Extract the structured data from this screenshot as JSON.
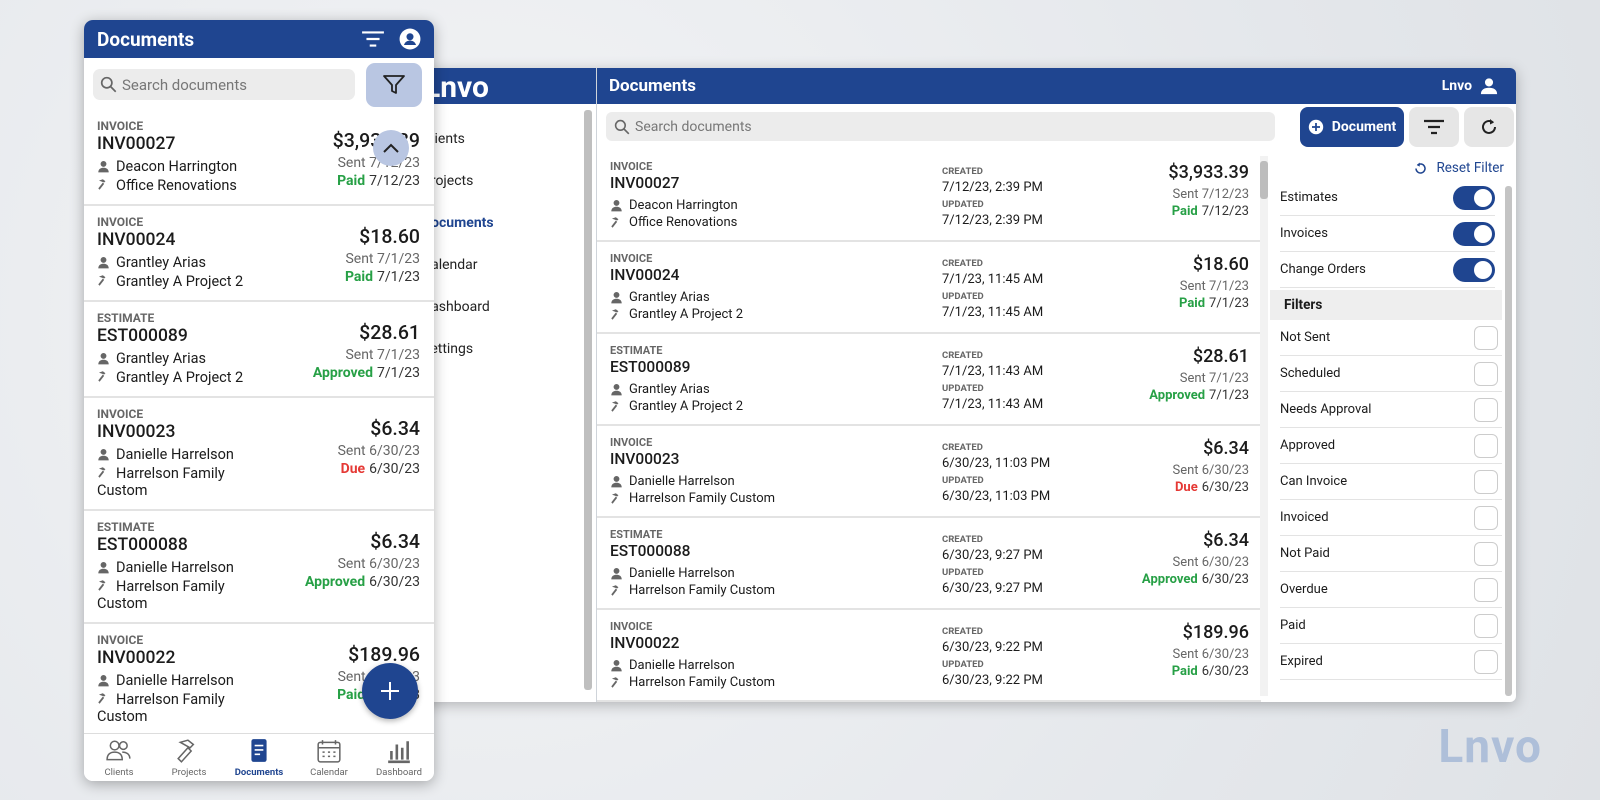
{
  "mobile": {
    "title": "Documents",
    "search_placeholder": "Search documents",
    "nav": [
      "Clients",
      "Projects",
      "Documents",
      "Calendar",
      "Dashboard"
    ]
  },
  "desktop": {
    "logo": "Lnvo",
    "sidebar": [
      "Clients",
      "Projects",
      "Documents",
      "Calendar",
      "Dashboard",
      "Settings"
    ],
    "title": "Documents",
    "user": "Lnvo",
    "search_placeholder": "Search documents",
    "new_button": "Document",
    "reset_filter": "Reset Filter",
    "toggles": [
      "Estimates",
      "Invoices",
      "Change Orders"
    ],
    "filters_heading": "Filters",
    "filters": [
      "Not Sent",
      "Scheduled",
      "Needs Approval",
      "Approved",
      "Can Invoice",
      "Invoiced",
      "Not Paid",
      "Overdue",
      "Paid",
      "Expired"
    ],
    "created_label": "CREATED",
    "updated_label": "UPDATED"
  },
  "documents": [
    {
      "type": "INVOICE",
      "number": "INV00027",
      "client": "Deacon Harrington",
      "project": "Office Renovations",
      "amount": "$3,933.39",
      "sent": "Sent 7/12/23",
      "status": "Paid",
      "status_date": "7/12/23",
      "status_color": "#27a046",
      "created": "7/12/23, 2:39 PM",
      "updated": "7/12/23, 2:39 PM"
    },
    {
      "type": "INVOICE",
      "number": "INV00024",
      "client": "Grantley Arias",
      "project": "Grantley A Project 2",
      "amount": "$18.60",
      "sent": "Sent 7/1/23",
      "status": "Paid",
      "status_date": "7/1/23",
      "status_color": "#27a046",
      "created": "7/1/23, 11:45 AM",
      "updated": "7/1/23, 11:45 AM"
    },
    {
      "type": "ESTIMATE",
      "number": "EST000089",
      "client": "Grantley Arias",
      "project": "Grantley A Project 2",
      "amount": "$28.61",
      "sent": "Sent 7/1/23",
      "status": "Approved",
      "status_date": "7/1/23",
      "status_color": "#27a046",
      "created": "7/1/23, 11:43 AM",
      "updated": "7/1/23, 11:43 AM"
    },
    {
      "type": "INVOICE",
      "number": "INV00023",
      "client": "Danielle Harrelson",
      "project": "Harrelson Family Custom",
      "amount": "$6.34",
      "sent": "Sent 6/30/23",
      "status": "Due",
      "status_date": "6/30/23",
      "status_color": "#e53935",
      "created": "6/30/23, 11:03 PM",
      "updated": "6/30/23, 11:03 PM"
    },
    {
      "type": "ESTIMATE",
      "number": "EST000088",
      "client": "Danielle Harrelson",
      "project": "Harrelson Family Custom",
      "amount": "$6.34",
      "sent": "Sent 6/30/23",
      "status": "Approved",
      "status_date": "6/30/23",
      "status_color": "#27a046",
      "created": "6/30/23, 9:27 PM",
      "updated": "6/30/23, 9:27 PM"
    },
    {
      "type": "INVOICE",
      "number": "INV00022",
      "client": "Danielle Harrelson",
      "project": "Harrelson Family Custom",
      "amount": "$189.96",
      "sent": "Sent 6/30/23",
      "status": "Paid",
      "status_date": "6/30/23",
      "status_color": "#27a046",
      "created": "6/30/23, 9:22 PM",
      "updated": "6/30/23, 9:22 PM"
    }
  ],
  "watermark": "Lnvo"
}
